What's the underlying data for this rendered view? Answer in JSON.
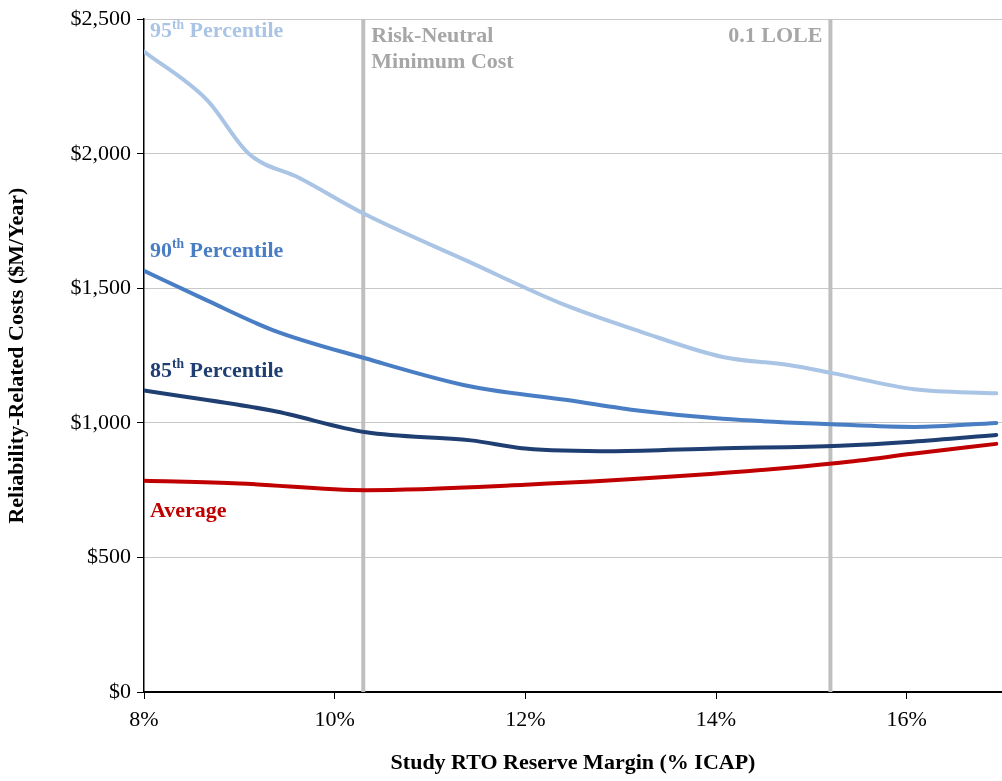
{
  "chart_data": {
    "type": "line",
    "xlabel": "Study RTO Reserve Margin (% ICAP)",
    "ylabel": "Reliability-Related Costs ($M/Year)",
    "xlim": [
      8,
      17
    ],
    "xticks": [
      {
        "value": 8,
        "label": "8%"
      },
      {
        "value": 10,
        "label": "10%"
      },
      {
        "value": 12,
        "label": "12%"
      },
      {
        "value": 14,
        "label": "14%"
      },
      {
        "value": 16,
        "label": "16%"
      }
    ],
    "ylim": [
      0,
      2500
    ],
    "yticks": [
      {
        "value": 0,
        "label": "$0"
      },
      {
        "value": 500,
        "label": "$500"
      },
      {
        "value": 1000,
        "label": "$1,000"
      },
      {
        "value": 1500,
        "label": "$1,500"
      },
      {
        "value": 2000,
        "label": "$2,000"
      },
      {
        "value": 2500,
        "label": "$2,500"
      }
    ],
    "grid": "y",
    "legend": false,
    "marker": "none",
    "line_style": "solid",
    "series": [
      {
        "name": "95$^{th}$ Percentile",
        "color": "#a9c4e4",
        "x": [
          8,
          8.66,
          9.1,
          9.63,
          10.32,
          11.4,
          12.4,
          13.2,
          14.07,
          14.76,
          15.22,
          16.08,
          16.94
        ],
        "values": [
          2380,
          2200,
          2000,
          1910,
          1775,
          1600,
          1440,
          1340,
          1245,
          1215,
          1185,
          1125,
          1110
        ]
      },
      {
        "name": "90$^{th}$ Percentile",
        "color": "#4a7ec4",
        "x": [
          8,
          8.66,
          9.35,
          10.32,
          11.43,
          12.44,
          13.2,
          14.07,
          15.22,
          16.08,
          16.94
        ],
        "values": [
          1565,
          1455,
          1345,
          1240,
          1135,
          1085,
          1045,
          1015,
          995,
          985,
          1000
        ]
      },
      {
        "name": "85$^{th}$ Percentile",
        "color": "#1f3f73",
        "x": [
          8,
          9.35,
          10.33,
          11.43,
          12,
          12.94,
          14,
          15.3,
          16.06,
          16.94
        ],
        "values": [
          1120,
          1045,
          965,
          935,
          905,
          895,
          905,
          915,
          930,
          955
        ]
      },
      {
        "name": "Average",
        "color": "#c00000",
        "x": [
          8,
          9,
          10.33,
          12,
          13.74,
          15.3,
          16.06,
          16.94
        ],
        "values": [
          785,
          775,
          750,
          770,
          805,
          852,
          885,
          922
        ]
      }
    ],
    "ref_lines": [
      {
        "axis": "x",
        "value": 10.3,
        "label": "Risk-Neutral Minimum Cost",
        "color": "#bfbfbf"
      },
      {
        "axis": "x",
        "value": 15.2,
        "label": "0.1 LOLE",
        "color": "#bfbfbf"
      }
    ]
  }
}
